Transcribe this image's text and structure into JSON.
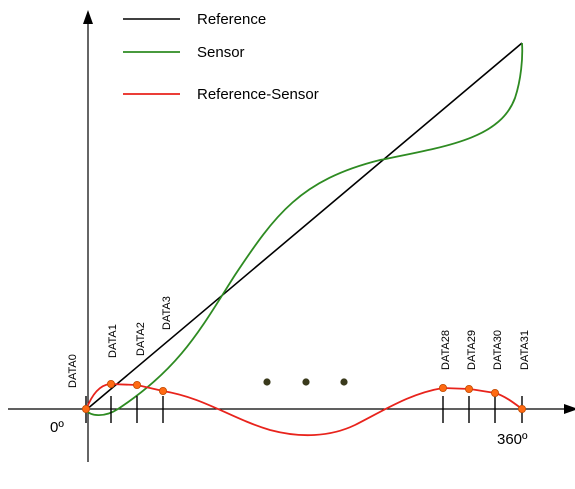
{
  "legend": [
    {
      "label": "Reference",
      "color": "#000000"
    },
    {
      "label": "Sensor",
      "color": "#2e8b22"
    },
    {
      "label": "Reference-Sensor",
      "color": "#e8231c"
    }
  ],
  "axis": {
    "x_start_label": "0º",
    "x_end_label": "360º"
  },
  "data_labels": [
    "DATA0",
    "DATA1",
    "DATA2",
    "DATA3",
    "DATA28",
    "DATA29",
    "DATA30",
    "DATA31"
  ],
  "colors": {
    "reference": "#000000",
    "sensor": "#2e8b22",
    "difference": "#e8231c",
    "marker_fill": "#ff6a13",
    "ellipsis_dot": "#3a3a1c"
  }
}
